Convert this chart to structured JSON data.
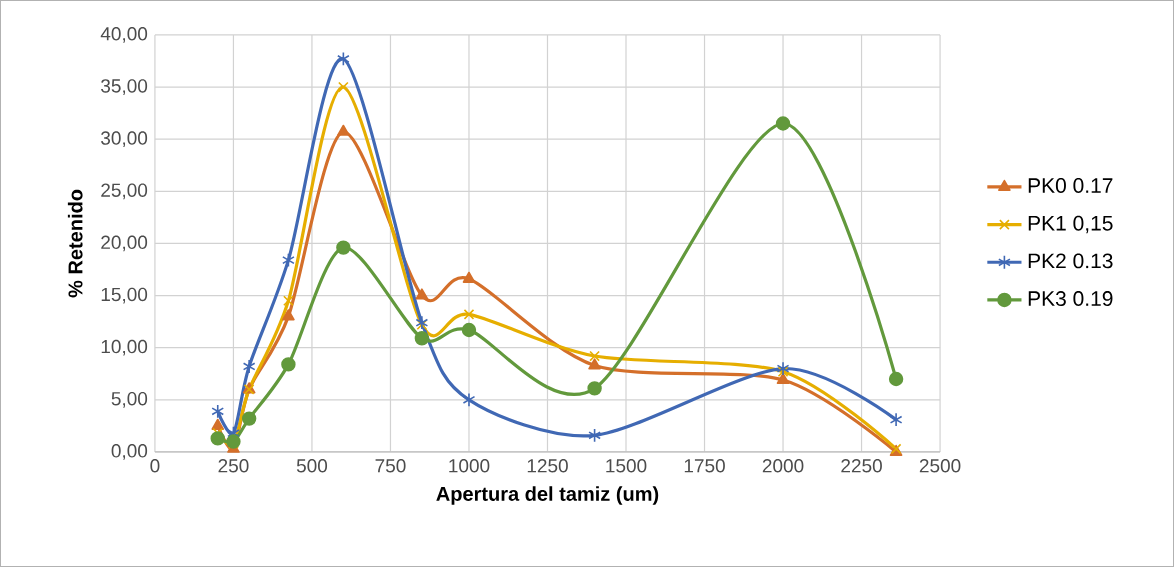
{
  "chart_data": {
    "type": "line",
    "xlabel": "Apertura del tamiz (um)",
    "ylabel": "% Retenido",
    "x": [
      200,
      250,
      300,
      425,
      600,
      850,
      1000,
      1400,
      2000,
      2360
    ],
    "xlim": [
      0,
      2500
    ],
    "xticks": [
      0,
      250,
      500,
      750,
      1000,
      1250,
      1500,
      1750,
      2000,
      2250,
      2500
    ],
    "ylim": [
      0,
      40
    ],
    "yticks": [
      {
        "value": 0,
        "label": "0,00"
      },
      {
        "value": 5,
        "label": "5,00"
      },
      {
        "value": 10,
        "label": "10,00"
      },
      {
        "value": 15,
        "label": "15,00"
      },
      {
        "value": 20,
        "label": "20,00"
      },
      {
        "value": 25,
        "label": "25,00"
      },
      {
        "value": 30,
        "label": "30,00"
      },
      {
        "value": 35,
        "label": "35,00"
      },
      {
        "value": 40,
        "label": "40,00"
      }
    ],
    "grid": true,
    "legend": "right",
    "series": [
      {
        "name": "PK0 0.17",
        "color": "#d46f2a",
        "marker": "triangle",
        "values": [
          2.5,
          0.3,
          6.0,
          13.0,
          30.7,
          15.0,
          16.6,
          8.3,
          6.9,
          0
        ]
      },
      {
        "name": "PK1 0,15",
        "color": "#e6ae00",
        "marker": "cross",
        "values": [
          1.8,
          0.8,
          6.0,
          14.5,
          35.0,
          12.2,
          13.2,
          9.2,
          7.7,
          0.3
        ]
      },
      {
        "name": "PK2 0.13",
        "color": "#4068b4",
        "marker": "cross",
        "values": [
          3.9,
          1.8,
          8.2,
          18.4,
          37.7,
          12.4,
          5.0,
          1.6,
          8.0,
          3.1
        ]
      },
      {
        "name": "PK3 0.19",
        "color": "#62993c",
        "marker": "circle",
        "values": [
          1.3,
          1.0,
          3.2,
          8.4,
          19.6,
          10.9,
          11.7,
          6.1,
          31.5,
          7.0
        ]
      }
    ]
  }
}
